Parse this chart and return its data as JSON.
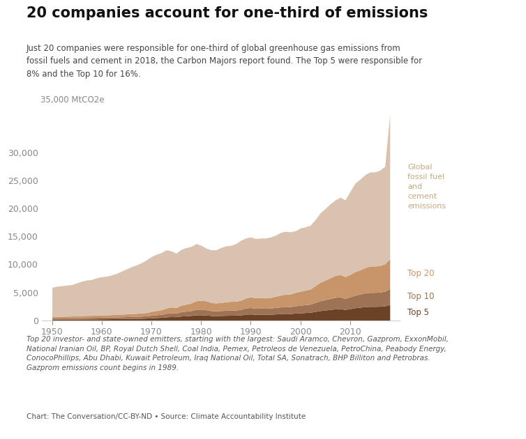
{
  "title": "20 companies account for one-third of emissions",
  "subtitle": "Just 20 companies were responsible for one-third of global greenhouse gas emissions from\nfossil fuels and cement in 2018, the Carbon Majors report found. The Top 5 were responsible for\n8% and the Top 10 for 16%.",
  "footnote1": "Top 20 investor- and state-owned emitters, starting with the largest: Saudi Aramco, Chevron, Gazprom, ExxonMobil,\nNational Iranian Oil, BP, Royal Dutch Shell, Coal India, Pemex, Petroleos de Venezuela, PetroChina, Peabody Energy,\nConocoPhillips, Abu Dhabi, Kuwait Petroleum, Iraq National Oil, Total SA, Sonatrach, BHP Billiton and Petrobras.\nGazprom emissions count begins in 1989.",
  "footnote2": "Chart: The Conversation/CC-BY-ND • Source: Climate Accountability Institute",
  "ylabel": "35,000 MtCO2e",
  "colors": {
    "global": "#d9c3b0",
    "top20": "#c8956a",
    "top10": "#9e7355",
    "top5": "#6b4226"
  },
  "label_colors": {
    "global": "#c4a882",
    "top20": "#c8956a",
    "top10": "#9e7355",
    "top5": "#6b4226"
  },
  "years": [
    1950,
    1951,
    1952,
    1953,
    1954,
    1955,
    1956,
    1957,
    1958,
    1959,
    1960,
    1961,
    1962,
    1963,
    1964,
    1965,
    1966,
    1967,
    1968,
    1969,
    1970,
    1971,
    1972,
    1973,
    1974,
    1975,
    1976,
    1977,
    1978,
    1979,
    1980,
    1981,
    1982,
    1983,
    1984,
    1985,
    1986,
    1987,
    1988,
    1989,
    1990,
    1991,
    1992,
    1993,
    1994,
    1995,
    1996,
    1997,
    1998,
    1999,
    2000,
    2001,
    2002,
    2003,
    2004,
    2005,
    2006,
    2007,
    2008,
    2009,
    2010,
    2011,
    2012,
    2013,
    2014,
    2015,
    2016,
    2017,
    2018
  ],
  "global_emissions": [
    5900,
    6100,
    6200,
    6300,
    6400,
    6700,
    7000,
    7200,
    7300,
    7600,
    7800,
    7900,
    8100,
    8400,
    8800,
    9200,
    9600,
    9900,
    10300,
    10800,
    11400,
    11800,
    12100,
    12600,
    12400,
    12000,
    12700,
    13000,
    13200,
    13700,
    13400,
    12900,
    12600,
    12600,
    13000,
    13300,
    13400,
    13700,
    14300,
    14700,
    14900,
    14600,
    14700,
    14700,
    14900,
    15200,
    15700,
    15900,
    15800,
    16000,
    16500,
    16700,
    17000,
    18000,
    19200,
    20000,
    20800,
    21500,
    22000,
    21500,
    23000,
    24500,
    25200,
    26000,
    26500,
    26500,
    26800,
    27500,
    36800
  ],
  "top20_emissions": [
    700,
    720,
    740,
    760,
    780,
    810,
    850,
    890,
    900,
    940,
    970,
    990,
    1020,
    1060,
    1110,
    1160,
    1210,
    1260,
    1320,
    1400,
    1600,
    1750,
    1900,
    2200,
    2400,
    2300,
    2700,
    2900,
    3100,
    3500,
    3600,
    3500,
    3200,
    3100,
    3200,
    3300,
    3400,
    3400,
    3600,
    4000,
    4200,
    4000,
    4100,
    4000,
    4100,
    4300,
    4500,
    4700,
    4700,
    5000,
    5200,
    5400,
    5600,
    6200,
    6800,
    7200,
    7600,
    8000,
    8200,
    7800,
    8200,
    8700,
    9000,
    9400,
    9700,
    9700,
    9800,
    10100,
    11000
  ],
  "top10_emissions": [
    400,
    410,
    420,
    430,
    440,
    460,
    490,
    510,
    520,
    540,
    560,
    570,
    590,
    610,
    640,
    670,
    700,
    730,
    760,
    810,
    920,
    1000,
    1080,
    1250,
    1350,
    1300,
    1550,
    1650,
    1750,
    1980,
    2000,
    1900,
    1750,
    1700,
    1750,
    1800,
    1850,
    1850,
    1950,
    2200,
    2300,
    2150,
    2200,
    2150,
    2200,
    2300,
    2400,
    2500,
    2450,
    2600,
    2700,
    2800,
    2900,
    3200,
    3500,
    3700,
    3900,
    4100,
    4200,
    3900,
    4200,
    4500,
    4700,
    4900,
    5000,
    5000,
    5050,
    5200,
    5700
  ],
  "top5_emissions": [
    200,
    205,
    210,
    215,
    220,
    230,
    245,
    255,
    260,
    270,
    280,
    285,
    295,
    305,
    320,
    335,
    350,
    365,
    380,
    405,
    460,
    500,
    540,
    625,
    675,
    650,
    775,
    825,
    875,
    990,
    1000,
    950,
    875,
    850,
    875,
    900,
    925,
    925,
    975,
    1100,
    1150,
    1075,
    1100,
    1075,
    1100,
    1150,
    1200,
    1250,
    1225,
    1300,
    1350,
    1400,
    1450,
    1600,
    1750,
    1850,
    1950,
    2050,
    2100,
    1950,
    2100,
    2250,
    2350,
    2450,
    2500,
    2500,
    2525,
    2600,
    2850
  ]
}
